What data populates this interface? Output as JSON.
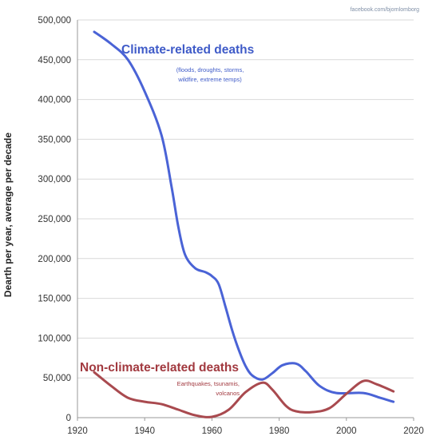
{
  "chart_data": {
    "type": "line",
    "credit": "facebook.com/bjornlomborg",
    "ylabel": "Dearth per year, average per decade",
    "xlim": [
      1920,
      2020
    ],
    "ylim": [
      0,
      500000
    ],
    "x_ticks": [
      "1920",
      "1940",
      "1960",
      "1980",
      "2000",
      "2020"
    ],
    "y_ticks": [
      "0",
      "50,000",
      "100,000",
      "150,000",
      "200,000",
      "250,000",
      "300,000",
      "350,000",
      "400,000",
      "450,000",
      "500,000"
    ],
    "grid": true,
    "series": [
      {
        "name": "Climate-related deaths",
        "subtitle_lines": [
          "(floods, droughts, storms,",
          "wildfire, extreme temps)"
        ],
        "color": "#4a63d6",
        "label_color": "#3f5bc8",
        "points": [
          [
            1925,
            485000
          ],
          [
            1930,
            470000
          ],
          [
            1935,
            450000
          ],
          [
            1940,
            410000
          ],
          [
            1945,
            355000
          ],
          [
            1948,
            290000
          ],
          [
            1950,
            240000
          ],
          [
            1952,
            205000
          ],
          [
            1955,
            188000
          ],
          [
            1958,
            183000
          ],
          [
            1960,
            178000
          ],
          [
            1962,
            168000
          ],
          [
            1964,
            140000
          ],
          [
            1966,
            110000
          ],
          [
            1968,
            85000
          ],
          [
            1970,
            65000
          ],
          [
            1972,
            53000
          ],
          [
            1975,
            48000
          ],
          [
            1978,
            56000
          ],
          [
            1981,
            66000
          ],
          [
            1985,
            68000
          ],
          [
            1988,
            58000
          ],
          [
            1992,
            40000
          ],
          [
            1997,
            31000
          ],
          [
            2005,
            31000
          ],
          [
            2010,
            25000
          ],
          [
            2014,
            20000
          ]
        ]
      },
      {
        "name": "Non-climate-related deaths",
        "subtitle_lines": [
          "Earthquakes, tsunamis,",
          "volcanos"
        ],
        "color": "#a94a4f",
        "label_color": "#a23a40",
        "points": [
          [
            1925,
            57000
          ],
          [
            1930,
            40000
          ],
          [
            1935,
            25000
          ],
          [
            1940,
            20000
          ],
          [
            1945,
            17000
          ],
          [
            1950,
            10000
          ],
          [
            1955,
            3000
          ],
          [
            1960,
            1000
          ],
          [
            1965,
            10000
          ],
          [
            1970,
            32000
          ],
          [
            1975,
            44000
          ],
          [
            1978,
            35000
          ],
          [
            1982,
            15000
          ],
          [
            1985,
            8000
          ],
          [
            1990,
            7000
          ],
          [
            1995,
            12000
          ],
          [
            2000,
            30000
          ],
          [
            2005,
            46000
          ],
          [
            2009,
            42000
          ],
          [
            2014,
            33000
          ]
        ]
      }
    ]
  }
}
